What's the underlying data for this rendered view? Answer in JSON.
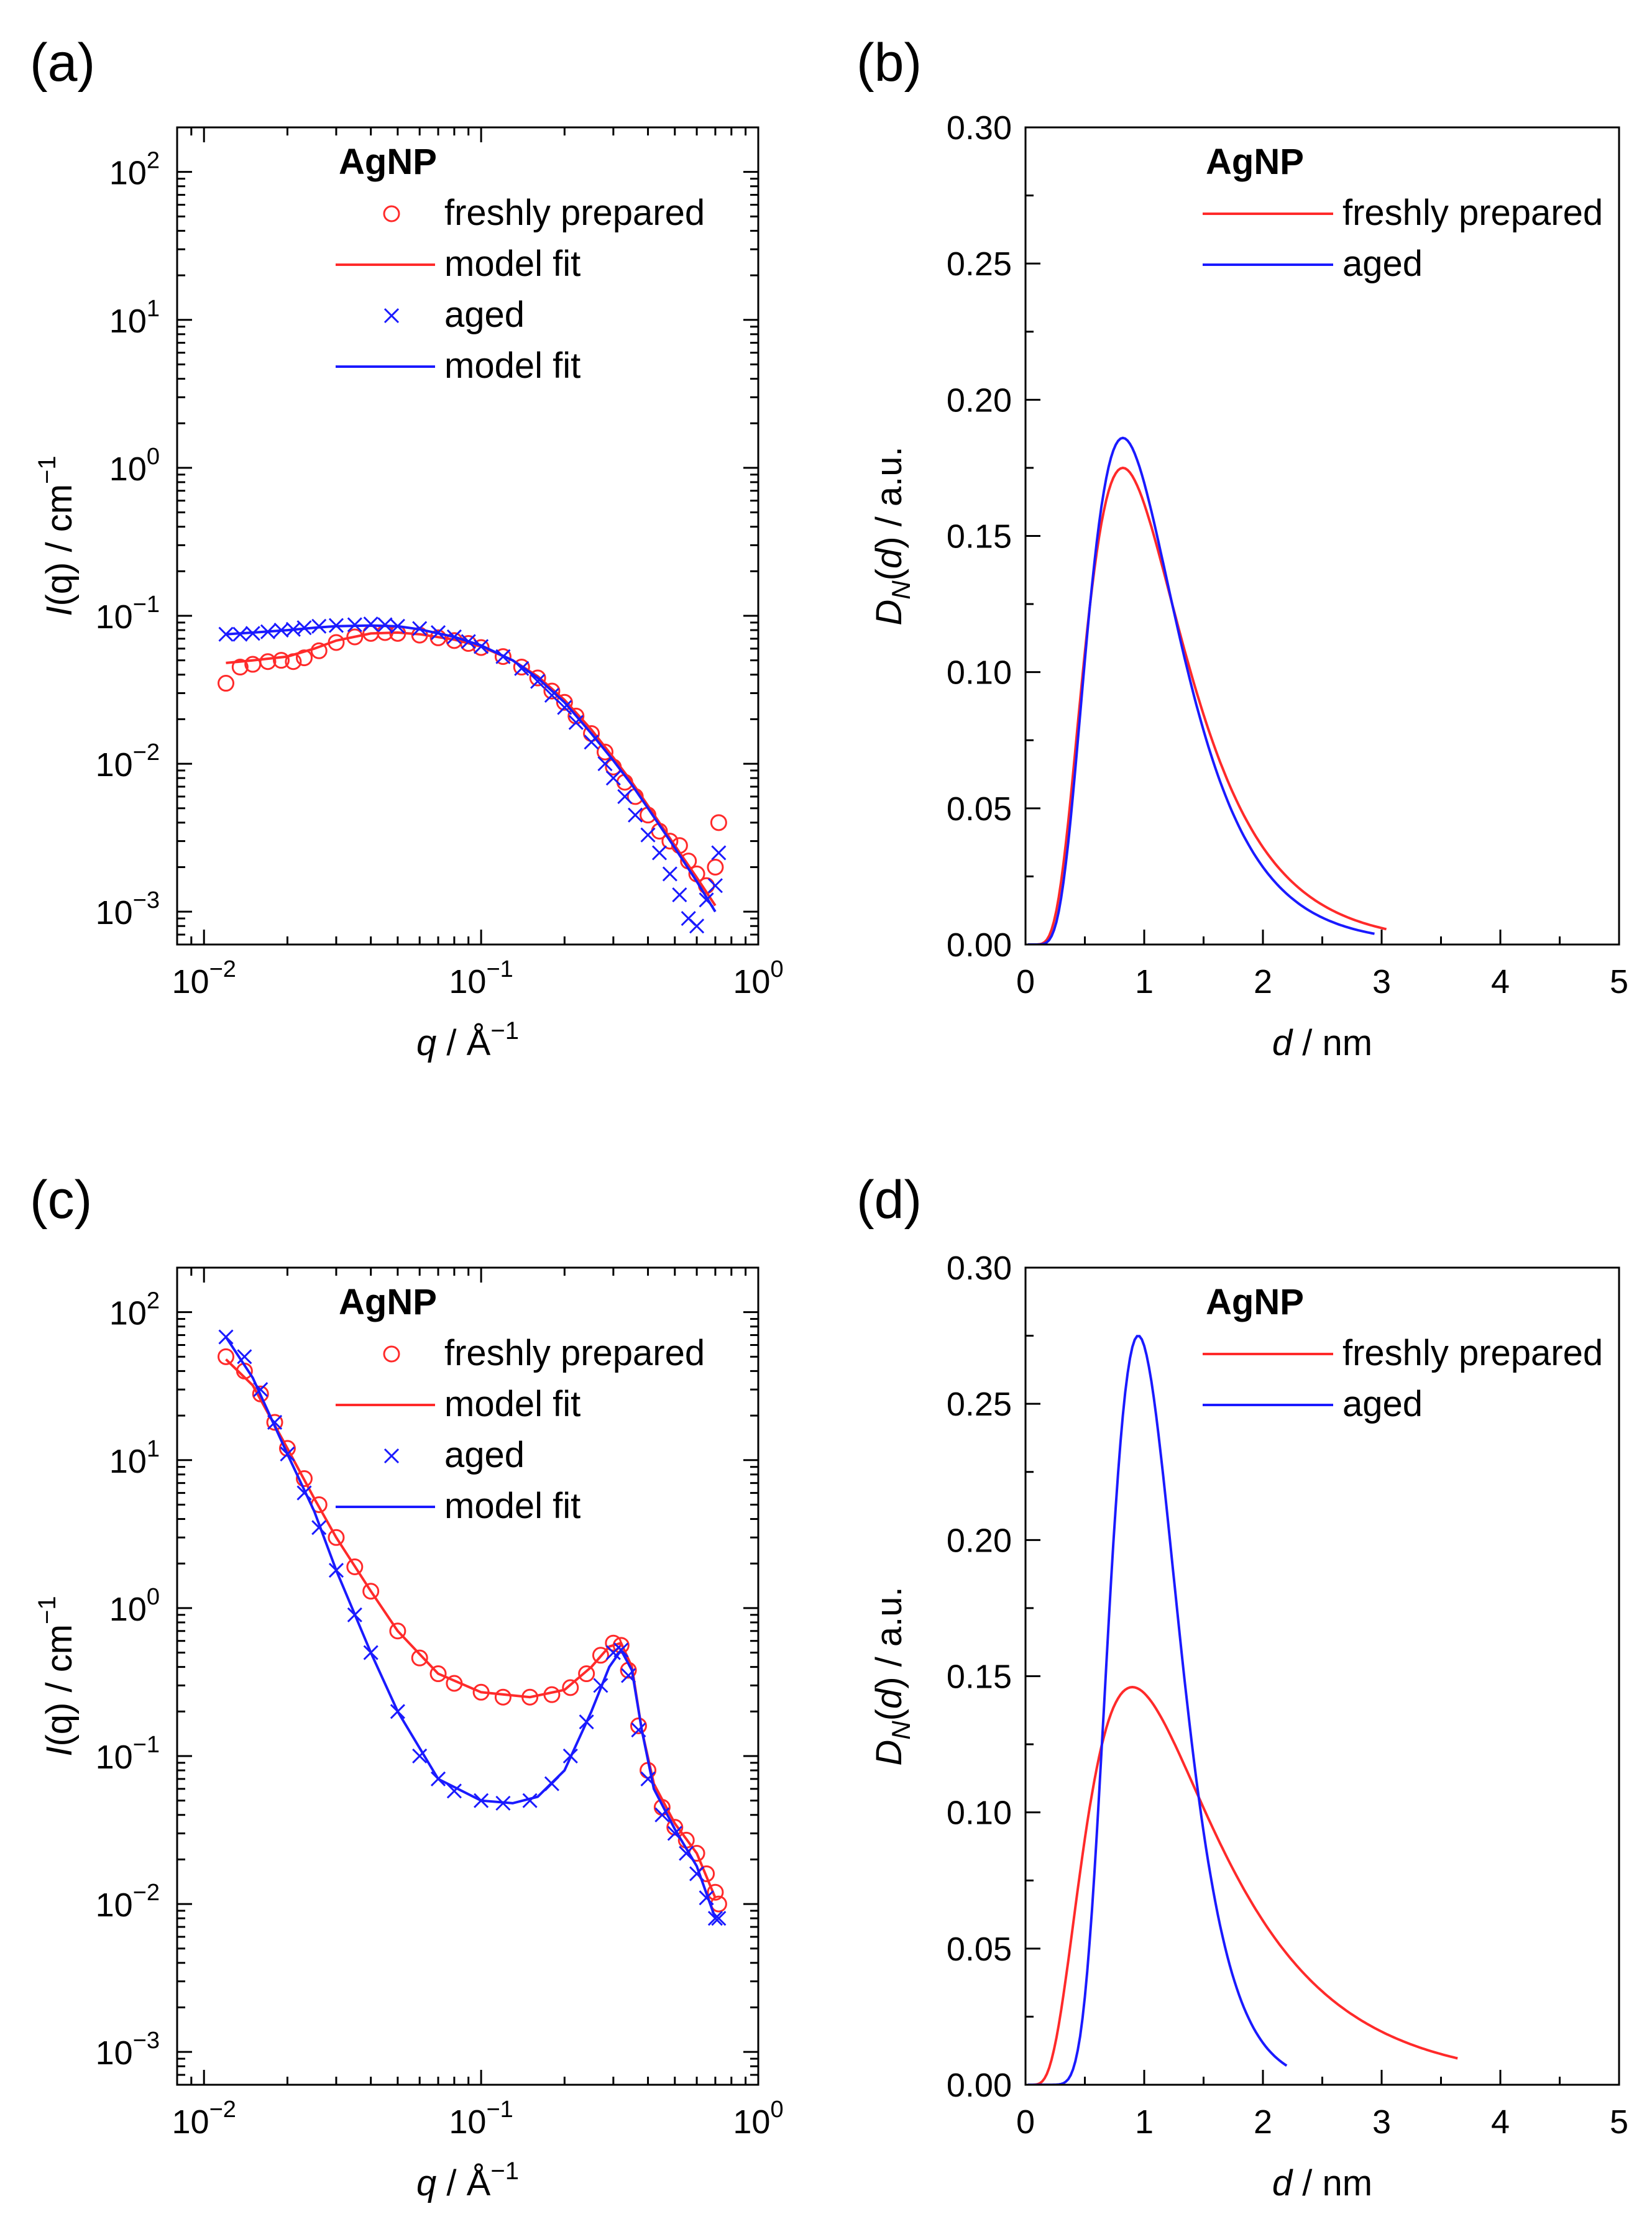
{
  "colors": {
    "fresh": "#ff2a2a",
    "aged": "#1a1aff",
    "axis": "#000000"
  },
  "chart_data": [
    {
      "panel": "(a)",
      "type": "scatter",
      "xscale": "log",
      "yscale": "log",
      "xlim": [
        0.008,
        1
      ],
      "ylim": [
        0.0006,
        200
      ],
      "xlabel": {
        "italic": "q",
        "text": " / Å",
        "sup": "−1"
      },
      "ylabel": {
        "italic": "I",
        "text": "(q) / cm",
        "sup": "−1"
      },
      "xticks": [
        {
          "base": "10",
          "exp": "−2",
          "v": 0.01
        },
        {
          "base": "10",
          "exp": "−1",
          "v": 0.1
        },
        {
          "base": "10",
          "exp": "0",
          "v": 1
        }
      ],
      "yticks": [
        {
          "base": "10",
          "exp": "−3",
          "v": 0.001
        },
        {
          "base": "10",
          "exp": "−2",
          "v": 0.01
        },
        {
          "base": "10",
          "exp": "−1",
          "v": 0.1
        },
        {
          "base": "10",
          "exp": "0",
          "v": 1
        },
        {
          "base": "10",
          "exp": "1",
          "v": 10
        },
        {
          "base": "10",
          "exp": "2",
          "v": 100
        }
      ],
      "legend": {
        "title": "AgNP",
        "position": "top",
        "entries": [
          {
            "label": "freshly prepared",
            "kind": "circle",
            "color": "fresh"
          },
          {
            "label": "model fit",
            "kind": "line",
            "color": "fresh"
          },
          {
            "label": "aged",
            "kind": "cross",
            "color": "aged"
          },
          {
            "label": "model fit",
            "kind": "line",
            "color": "aged"
          }
        ]
      },
      "series": [
        {
          "name": "freshly prepared",
          "kind": "circle",
          "color": "fresh",
          "x": [
            0.012,
            0.0135,
            0.015,
            0.017,
            0.019,
            0.021,
            0.023,
            0.026,
            0.03,
            0.035,
            0.04,
            0.045,
            0.05,
            0.06,
            0.07,
            0.08,
            0.09,
            0.1,
            0.12,
            0.14,
            0.16,
            0.18,
            0.2,
            0.22,
            0.25,
            0.28,
            0.3,
            0.33,
            0.36,
            0.4,
            0.44,
            0.48,
            0.52,
            0.56,
            0.6,
            0.65,
            0.7,
            0.72
          ],
          "y": [
            0.035,
            0.045,
            0.047,
            0.049,
            0.05,
            0.049,
            0.052,
            0.058,
            0.066,
            0.072,
            0.076,
            0.077,
            0.076,
            0.074,
            0.071,
            0.068,
            0.065,
            0.061,
            0.053,
            0.045,
            0.038,
            0.031,
            0.026,
            0.021,
            0.016,
            0.012,
            0.0095,
            0.0075,
            0.006,
            0.0045,
            0.0035,
            0.003,
            0.0028,
            0.0022,
            0.0018,
            0.0015,
            0.002,
            0.004
          ]
        },
        {
          "name": "model fit",
          "kind": "line",
          "color": "fresh",
          "x": [
            0.012,
            0.015,
            0.02,
            0.025,
            0.03,
            0.04,
            0.05,
            0.06,
            0.08,
            0.1,
            0.13,
            0.16,
            0.2,
            0.25,
            0.3,
            0.35,
            0.4,
            0.5,
            0.6,
            0.7
          ],
          "y": [
            0.048,
            0.05,
            0.053,
            0.06,
            0.068,
            0.076,
            0.077,
            0.075,
            0.069,
            0.062,
            0.05,
            0.039,
            0.027,
            0.017,
            0.011,
            0.0075,
            0.0052,
            0.0028,
            0.0017,
            0.0011
          ]
        },
        {
          "name": "aged",
          "kind": "cross",
          "color": "aged",
          "x": [
            0.012,
            0.0135,
            0.015,
            0.017,
            0.019,
            0.021,
            0.023,
            0.026,
            0.03,
            0.035,
            0.04,
            0.045,
            0.05,
            0.06,
            0.07,
            0.08,
            0.09,
            0.1,
            0.12,
            0.14,
            0.16,
            0.18,
            0.2,
            0.22,
            0.25,
            0.28,
            0.3,
            0.33,
            0.36,
            0.4,
            0.44,
            0.48,
            0.52,
            0.56,
            0.6,
            0.65,
            0.7,
            0.72
          ],
          "y": [
            0.075,
            0.075,
            0.076,
            0.078,
            0.08,
            0.081,
            0.083,
            0.085,
            0.086,
            0.087,
            0.088,
            0.087,
            0.085,
            0.082,
            0.077,
            0.072,
            0.067,
            0.062,
            0.053,
            0.044,
            0.036,
            0.029,
            0.024,
            0.019,
            0.014,
            0.01,
            0.008,
            0.006,
            0.0045,
            0.0033,
            0.0025,
            0.0018,
            0.0013,
            0.0009,
            0.0008,
            0.0012,
            0.0015,
            0.0025
          ]
        },
        {
          "name": "model fit",
          "kind": "line",
          "color": "aged",
          "x": [
            0.012,
            0.015,
            0.02,
            0.025,
            0.03,
            0.04,
            0.05,
            0.06,
            0.08,
            0.1,
            0.13,
            0.16,
            0.2,
            0.25,
            0.3,
            0.35,
            0.4,
            0.5,
            0.6,
            0.7
          ],
          "y": [
            0.075,
            0.077,
            0.08,
            0.083,
            0.085,
            0.086,
            0.085,
            0.081,
            0.072,
            0.063,
            0.05,
            0.038,
            0.026,
            0.016,
            0.0105,
            0.0072,
            0.005,
            0.0027,
            0.0016,
            0.001
          ]
        }
      ]
    },
    {
      "panel": "(b)",
      "type": "line",
      "xscale": "linear",
      "yscale": "linear",
      "xlim": [
        0,
        5
      ],
      "ylim": [
        0,
        0.3
      ],
      "xlabel": {
        "italic": "d",
        "text": " / nm"
      },
      "ylabel": {
        "pre": "D",
        "sub": "N",
        "mid": "(",
        "italic": "d",
        "text": ") / a.u."
      },
      "xticks": [
        "0",
        "1",
        "2",
        "3",
        "4",
        "5"
      ],
      "yticks": [
        "0.00",
        "0.05",
        "0.10",
        "0.15",
        "0.20",
        "0.25",
        "0.30"
      ],
      "legend": {
        "title": "AgNP",
        "position": "top",
        "entries": [
          {
            "label": "freshly prepared",
            "kind": "line",
            "color": "fresh"
          },
          {
            "label": "aged",
            "kind": "line",
            "color": "aged"
          }
        ]
      },
      "series": [
        {
          "name": "freshly prepared",
          "color": "fresh",
          "mode": 0.82,
          "peak": 0.175,
          "sigma": 0.5,
          "xmax": 3.05
        },
        {
          "name": "aged",
          "color": "aged",
          "mode": 0.82,
          "peak": 0.186,
          "sigma": 0.46,
          "xmax": 2.95
        }
      ]
    },
    {
      "panel": "(c)",
      "type": "scatter",
      "xscale": "log",
      "yscale": "log",
      "xlim": [
        0.008,
        1
      ],
      "ylim": [
        0.0006,
        200
      ],
      "xlabel": {
        "italic": "q",
        "text": " / Å",
        "sup": "−1"
      },
      "ylabel": {
        "italic": "I",
        "text": "(q) / cm",
        "sup": "−1"
      },
      "xticks": [
        {
          "base": "10",
          "exp": "−2",
          "v": 0.01
        },
        {
          "base": "10",
          "exp": "−1",
          "v": 0.1
        },
        {
          "base": "10",
          "exp": "0",
          "v": 1
        }
      ],
      "yticks": [
        {
          "base": "10",
          "exp": "−3",
          "v": 0.001
        },
        {
          "base": "10",
          "exp": "−2",
          "v": 0.01
        },
        {
          "base": "10",
          "exp": "−1",
          "v": 0.1
        },
        {
          "base": "10",
          "exp": "0",
          "v": 1
        },
        {
          "base": "10",
          "exp": "1",
          "v": 10
        },
        {
          "base": "10",
          "exp": "2",
          "v": 100
        }
      ],
      "legend": {
        "title": "AgNP",
        "position": "top",
        "entries": [
          {
            "label": "freshly prepared",
            "kind": "circle",
            "color": "fresh"
          },
          {
            "label": "model fit",
            "kind": "line",
            "color": "fresh"
          },
          {
            "label": "aged",
            "kind": "cross",
            "color": "aged"
          },
          {
            "label": "model fit",
            "kind": "line",
            "color": "aged"
          }
        ]
      },
      "series": [
        {
          "name": "freshly prepared",
          "kind": "circle",
          "color": "fresh",
          "x": [
            0.012,
            0.014,
            0.016,
            0.018,
            0.02,
            0.023,
            0.026,
            0.03,
            0.035,
            0.04,
            0.05,
            0.06,
            0.07,
            0.08,
            0.1,
            0.12,
            0.15,
            0.18,
            0.21,
            0.24,
            0.27,
            0.3,
            0.32,
            0.34,
            0.37,
            0.4,
            0.45,
            0.5,
            0.55,
            0.6,
            0.65,
            0.7,
            0.72
          ],
          "y": [
            50,
            40,
            28,
            18,
            12,
            7.5,
            5,
            3,
            1.9,
            1.3,
            0.7,
            0.46,
            0.36,
            0.31,
            0.27,
            0.25,
            0.25,
            0.26,
            0.29,
            0.36,
            0.48,
            0.58,
            0.56,
            0.38,
            0.16,
            0.08,
            0.045,
            0.033,
            0.027,
            0.022,
            0.016,
            0.012,
            0.01
          ]
        },
        {
          "name": "model fit",
          "kind": "line",
          "color": "fresh",
          "x": [
            0.012,
            0.015,
            0.02,
            0.025,
            0.03,
            0.04,
            0.05,
            0.07,
            0.1,
            0.15,
            0.2,
            0.25,
            0.29,
            0.32,
            0.35,
            0.38,
            0.42,
            0.5,
            0.6,
            0.7
          ],
          "y": [
            48,
            32,
            12,
            5.5,
            3,
            1.3,
            0.7,
            0.36,
            0.27,
            0.25,
            0.28,
            0.4,
            0.55,
            0.58,
            0.4,
            0.15,
            0.065,
            0.035,
            0.022,
            0.011
          ]
        },
        {
          "name": "aged",
          "kind": "cross",
          "color": "aged",
          "x": [
            0.012,
            0.014,
            0.016,
            0.018,
            0.02,
            0.023,
            0.026,
            0.03,
            0.035,
            0.04,
            0.05,
            0.06,
            0.07,
            0.08,
            0.1,
            0.12,
            0.15,
            0.18,
            0.21,
            0.24,
            0.27,
            0.3,
            0.32,
            0.34,
            0.37,
            0.4,
            0.45,
            0.5,
            0.55,
            0.6,
            0.65,
            0.7,
            0.72
          ],
          "y": [
            68,
            50,
            30,
            18,
            11,
            6,
            3.5,
            1.8,
            0.9,
            0.5,
            0.2,
            0.1,
            0.07,
            0.058,
            0.05,
            0.048,
            0.05,
            0.065,
            0.1,
            0.17,
            0.3,
            0.5,
            0.52,
            0.35,
            0.15,
            0.07,
            0.04,
            0.03,
            0.022,
            0.016,
            0.011,
            0.008,
            0.008
          ]
        },
        {
          "name": "model fit",
          "kind": "line",
          "color": "aged",
          "x": [
            0.012,
            0.015,
            0.02,
            0.025,
            0.03,
            0.04,
            0.05,
            0.07,
            0.1,
            0.13,
            0.16,
            0.2,
            0.25,
            0.29,
            0.32,
            0.35,
            0.38,
            0.42,
            0.5,
            0.6,
            0.7
          ],
          "y": [
            68,
            36,
            11,
            4.5,
            1.8,
            0.5,
            0.2,
            0.07,
            0.05,
            0.048,
            0.053,
            0.08,
            0.2,
            0.4,
            0.52,
            0.38,
            0.15,
            0.06,
            0.032,
            0.018,
            0.008
          ]
        }
      ]
    },
    {
      "panel": "(d)",
      "type": "line",
      "xscale": "linear",
      "yscale": "linear",
      "xlim": [
        0,
        5
      ],
      "ylim": [
        0,
        0.3
      ],
      "xlabel": {
        "italic": "d",
        "text": " / nm"
      },
      "ylabel": {
        "pre": "D",
        "sub": "N",
        "mid": "(",
        "italic": "d",
        "text": ") / a.u."
      },
      "xticks": [
        "0",
        "1",
        "2",
        "3",
        "4",
        "5"
      ],
      "yticks": [
        "0.00",
        "0.05",
        "0.10",
        "0.15",
        "0.20",
        "0.25",
        "0.30"
      ],
      "legend": {
        "title": "AgNP",
        "position": "top",
        "entries": [
          {
            "label": "freshly prepared",
            "kind": "line",
            "color": "fresh"
          },
          {
            "label": "aged",
            "kind": "line",
            "color": "aged"
          }
        ]
      },
      "series": [
        {
          "name": "freshly prepared",
          "color": "fresh",
          "mode": 0.9,
          "peak": 0.146,
          "sigma": 0.6,
          "xmax": 3.65
        },
        {
          "name": "aged",
          "color": "aged",
          "mode": 0.95,
          "peak": 0.275,
          "sigma": 0.31,
          "xmax": 2.2
        }
      ]
    }
  ]
}
